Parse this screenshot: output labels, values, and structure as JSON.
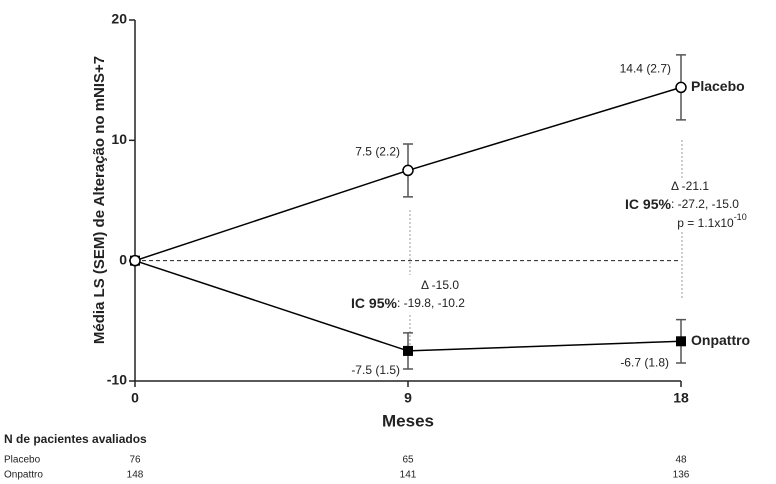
{
  "chart_data": {
    "type": "line",
    "x_label": "Meses",
    "y_label": "Média LS (SEM) de Alteração no mNIS+7",
    "x": [
      0,
      9,
      18
    ],
    "xlim": [
      0,
      18
    ],
    "xticks": [
      0,
      9,
      18
    ],
    "ylim": [
      -10,
      20
    ],
    "yticks": [
      -10,
      0,
      10,
      20
    ],
    "reference_line": 0,
    "series": [
      {
        "name": "Placebo",
        "color": "#000000",
        "marker": "open-circle",
        "values": [
          0,
          7.5,
          14.4
        ],
        "errors": [
          null,
          2.2,
          2.7
        ],
        "value_labels": [
          null,
          "7.5 (2.2)",
          "14.4 (2.7)"
        ]
      },
      {
        "name": "Onpattro",
        "color": "#000000",
        "marker": "filled-square",
        "values": [
          0,
          -7.5,
          -6.7
        ],
        "errors": [
          null,
          1.5,
          1.8
        ],
        "value_labels": [
          null,
          "-7.5 (1.5)",
          "-6.7 (1.8)"
        ]
      }
    ],
    "annotations": [
      {
        "delta": "Δ -15.0",
        "ci_label": "IC 95%",
        "ci": ": -19.8, -10.2"
      },
      {
        "delta": "Δ -21.1",
        "ci_label": "IC 95%",
        "ci": ": -27.2, -15.0",
        "p": "p = 1.1x10",
        "p_exp": "-10"
      }
    ],
    "table": {
      "title": "N de pacientes avaliados",
      "rows": [
        {
          "name": "Placebo",
          "values": [
            76,
            65,
            48
          ]
        },
        {
          "name": "Onpattro",
          "values": [
            148,
            141,
            136
          ]
        }
      ]
    }
  }
}
